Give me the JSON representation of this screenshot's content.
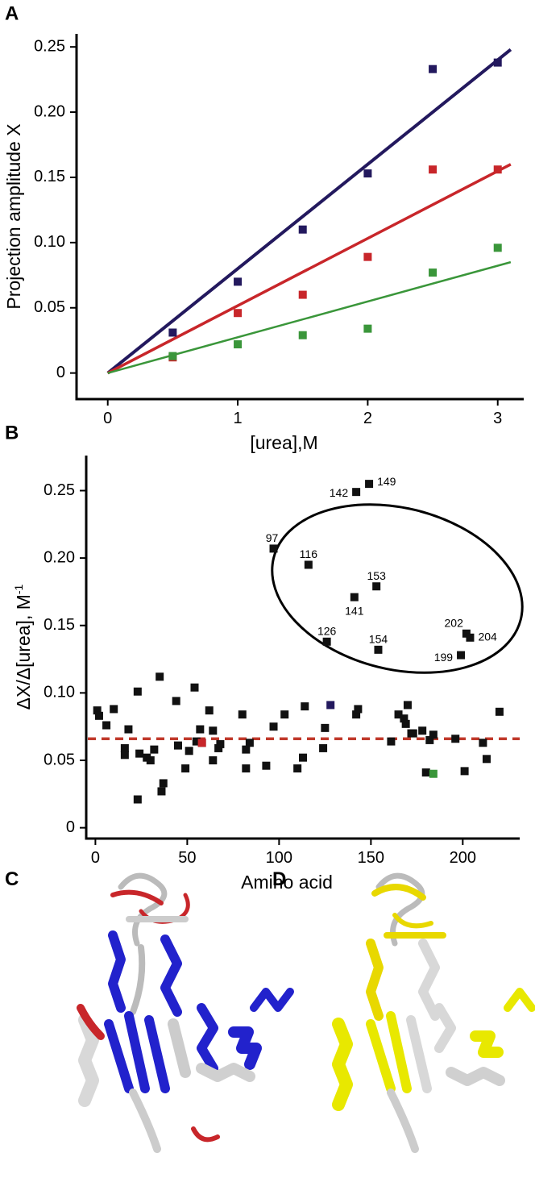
{
  "chart_data": [
    {
      "type": "scatter",
      "panel_label": "A",
      "x_label": "[urea],M",
      "y_label": "Projection amplitude X",
      "xlim": [
        -0.24,
        3.2
      ],
      "ylim": [
        -0.02,
        0.26
      ],
      "xticks": [
        0,
        1,
        2,
        3
      ],
      "yticks": [
        0,
        0.05,
        {
          "value": 0.1,
          "label": "0.10"
        },
        0.15,
        {
          "value": 0.2,
          "label": "0.20"
        },
        0.25
      ],
      "series": [
        {
          "color": "#23195e",
          "x": [
            0.5,
            1,
            1.5,
            2,
            2.5,
            3
          ],
          "values": [
            0.031,
            0.07,
            0.11,
            0.153,
            0.233,
            0.238
          ],
          "fit": {
            "x": [
              0,
              3.1
            ],
            "values": [
              0,
              0.248
            ],
            "width": 4
          }
        },
        {
          "color": "#c8262a",
          "x": [
            0.5,
            1,
            1.5,
            2,
            2.5,
            3
          ],
          "values": [
            0.012,
            0.046,
            0.06,
            0.089,
            0.156,
            0.156
          ],
          "fit": {
            "x": [
              0,
              3.1
            ],
            "values": [
              0,
              0.16
            ],
            "width": 3.5
          }
        },
        {
          "color": "#3a963a",
          "x": [
            0.5,
            1,
            1.5,
            2,
            2.5,
            3
          ],
          "values": [
            0.013,
            0.022,
            0.029,
            0.034,
            0.077,
            0.096
          ],
          "fit": {
            "x": [
              0,
              3.1
            ],
            "values": [
              0,
              0.085
            ],
            "width": 2.5
          }
        }
      ]
    },
    {
      "type": "scatter",
      "panel_label": "B",
      "x_label": "Amino acid",
      "y_label": "ΔX/Δ[urea], M",
      "y_label_sup": "-1",
      "xlim": [
        -5,
        231
      ],
      "ylim": [
        -0.008,
        0.276
      ],
      "xticks": [
        0,
        50,
        100,
        150,
        200
      ],
      "yticks": [
        0,
        0.05,
        {
          "value": 0.1,
          "label": "0.10"
        },
        0.15,
        {
          "value": 0.2,
          "label": "0.20"
        },
        0.25
      ],
      "hline": {
        "value": 0.066,
        "color": "#c0392b"
      },
      "series": [
        {
          "color": "#111111",
          "x": [
            1,
            2,
            6,
            10,
            16,
            16,
            18,
            23,
            23,
            24,
            28,
            30,
            32,
            35,
            36,
            37,
            44,
            45,
            49,
            51,
            54,
            55,
            57,
            58,
            62,
            64,
            64,
            67,
            68,
            80,
            82,
            82,
            84,
            93,
            97,
            103,
            110,
            113,
            114,
            124,
            125,
            142,
            143,
            161,
            165,
            168,
            169,
            170,
            172,
            173,
            178,
            180,
            182,
            184,
            196,
            201,
            211,
            213,
            220
          ],
          "values": [
            0.087,
            0.083,
            0.076,
            0.088,
            0.054,
            0.059,
            0.073,
            0.021,
            0.101,
            0.055,
            0.052,
            0.05,
            0.058,
            0.112,
            0.027,
            0.033,
            0.094,
            0.061,
            0.044,
            0.057,
            0.104,
            0.064,
            0.073,
            0.063,
            0.087,
            0.072,
            0.05,
            0.059,
            0.062,
            0.084,
            0.044,
            0.058,
            0.063,
            0.046,
            0.075,
            0.084,
            0.044,
            0.052,
            0.09,
            0.059,
            0.074,
            0.084,
            0.088,
            0.064,
            0.084,
            0.081,
            0.077,
            0.091,
            0.07,
            0.07,
            0.072,
            0.041,
            0.065,
            0.069,
            0.066,
            0.042,
            0.063,
            0.051,
            0.086
          ]
        },
        {
          "color": "#111111",
          "show_labels": true,
          "x": [
            97,
            116,
            126,
            141,
            142,
            149,
            153,
            154,
            199,
            202,
            204
          ],
          "values": [
            0.207,
            0.195,
            0.138,
            0.171,
            0.249,
            0.255,
            0.179,
            0.132,
            0.128,
            0.144,
            0.141
          ]
        },
        {
          "color": "#23195e",
          "x": [
            128
          ],
          "values": [
            0.091
          ]
        },
        {
          "color": "#c8262a",
          "x": [
            58
          ],
          "values": [
            0.063
          ]
        },
        {
          "color": "#3a963a",
          "x": [
            184
          ],
          "values": [
            0.04
          ]
        }
      ]
    }
  ],
  "images": [
    {
      "panel_label": "C"
    },
    {
      "panel_label": "D"
    }
  ]
}
